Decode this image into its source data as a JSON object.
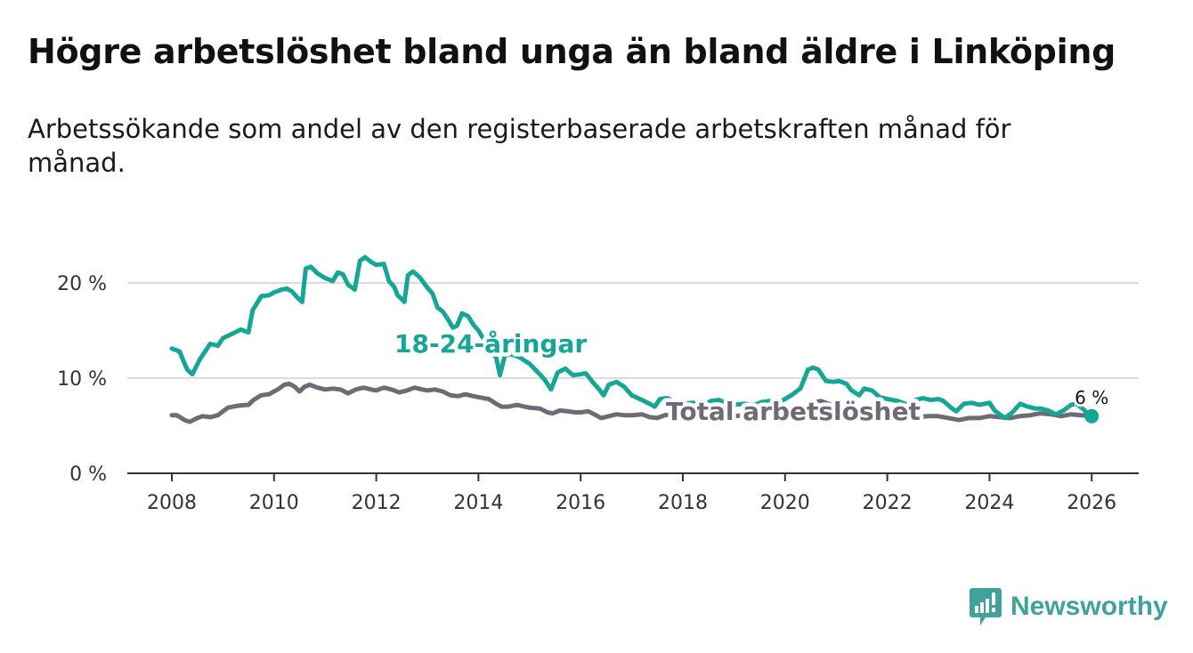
{
  "title": "Högre arbetslöshet bland unga än bland äldre i Linköping",
  "subtitle": "Arbetssökande som andel av den registerbaserade arbetskraften månad för månad.",
  "brand": {
    "name": "Newsworthy",
    "color": "#3fa39b",
    "icon": "newsworthy-logo-icon"
  },
  "chart_data": {
    "type": "line",
    "title": "Högre arbetslöshet bland unga än bland äldre i Linköping",
    "xlabel": "",
    "ylabel": "",
    "xlim": [
      2007.0,
      2026.85
    ],
    "ylim": [
      0,
      22
    ],
    "x_ticks": [
      2008,
      2010,
      2012,
      2014,
      2016,
      2018,
      2020,
      2022,
      2024,
      2026
    ],
    "x_tick_labels": [
      "2008",
      "2010",
      "2012",
      "2014",
      "2016",
      "2018",
      "2020",
      "2022",
      "2024",
      "2026"
    ],
    "y_ticks": [
      0,
      10,
      20
    ],
    "y_tick_labels": [
      "0 %",
      "10 %",
      "20 %"
    ],
    "grid": "horizontal",
    "end_label": "6 %",
    "series": [
      {
        "name": "18-24-åringar",
        "label": "18-24-åringar",
        "color": "#16a695",
        "points": [
          [
            2008.0,
            13.1
          ],
          [
            2008.15,
            12.8
          ],
          [
            2008.3,
            10.9
          ],
          [
            2008.4,
            10.4
          ],
          [
            2008.55,
            12.0
          ],
          [
            2008.75,
            13.6
          ],
          [
            2008.9,
            13.4
          ],
          [
            2009.0,
            14.2
          ],
          [
            2009.2,
            14.7
          ],
          [
            2009.35,
            15.1
          ],
          [
            2009.5,
            14.8
          ],
          [
            2009.58,
            17.1
          ],
          [
            2009.75,
            18.6
          ],
          [
            2009.9,
            18.7
          ],
          [
            2010.0,
            19.0
          ],
          [
            2010.15,
            19.3
          ],
          [
            2010.25,
            19.4
          ],
          [
            2010.35,
            19.1
          ],
          [
            2010.45,
            18.5
          ],
          [
            2010.55,
            18.0
          ],
          [
            2010.62,
            21.5
          ],
          [
            2010.72,
            21.7
          ],
          [
            2010.85,
            21.0
          ],
          [
            2011.0,
            20.5
          ],
          [
            2011.15,
            20.2
          ],
          [
            2011.25,
            21.1
          ],
          [
            2011.35,
            20.9
          ],
          [
            2011.45,
            19.8
          ],
          [
            2011.58,
            19.3
          ],
          [
            2011.68,
            22.3
          ],
          [
            2011.78,
            22.7
          ],
          [
            2011.9,
            22.2
          ],
          [
            2012.0,
            21.9
          ],
          [
            2012.15,
            22.0
          ],
          [
            2012.25,
            20.2
          ],
          [
            2012.35,
            19.6
          ],
          [
            2012.42,
            18.7
          ],
          [
            2012.55,
            18.0
          ],
          [
            2012.62,
            20.8
          ],
          [
            2012.72,
            21.2
          ],
          [
            2012.85,
            20.6
          ],
          [
            2013.0,
            19.5
          ],
          [
            2013.1,
            18.9
          ],
          [
            2013.2,
            17.4
          ],
          [
            2013.3,
            17.0
          ],
          [
            2013.4,
            16.2
          ],
          [
            2013.5,
            15.3
          ],
          [
            2013.58,
            15.5
          ],
          [
            2013.68,
            16.8
          ],
          [
            2013.8,
            16.5
          ],
          [
            2013.9,
            15.6
          ],
          [
            2014.0,
            15.0
          ],
          [
            2014.2,
            13.2
          ],
          [
            2014.35,
            12.1
          ],
          [
            2014.42,
            10.3
          ],
          [
            2014.52,
            12.4
          ],
          [
            2014.65,
            12.5
          ],
          [
            2014.8,
            12.2
          ],
          [
            2015.0,
            11.5
          ],
          [
            2015.2,
            10.4
          ],
          [
            2015.3,
            9.8
          ],
          [
            2015.42,
            8.8
          ],
          [
            2015.55,
            10.6
          ],
          [
            2015.7,
            11.0
          ],
          [
            2015.85,
            10.3
          ],
          [
            2016.0,
            10.4
          ],
          [
            2016.1,
            10.5
          ],
          [
            2016.25,
            9.5
          ],
          [
            2016.35,
            8.9
          ],
          [
            2016.45,
            8.2
          ],
          [
            2016.55,
            9.3
          ],
          [
            2016.7,
            9.6
          ],
          [
            2016.85,
            9.1
          ],
          [
            2017.0,
            8.2
          ],
          [
            2017.2,
            7.7
          ],
          [
            2017.35,
            7.3
          ],
          [
            2017.45,
            7.0
          ],
          [
            2017.55,
            7.8
          ],
          [
            2017.7,
            7.9
          ],
          [
            2017.85,
            7.5
          ],
          [
            2018.0,
            7.3
          ],
          [
            2018.2,
            7.4
          ],
          [
            2018.4,
            7.2
          ],
          [
            2018.55,
            7.6
          ],
          [
            2018.7,
            7.7
          ],
          [
            2018.85,
            7.4
          ],
          [
            2019.0,
            7.2
          ],
          [
            2019.2,
            7.3
          ],
          [
            2019.4,
            7.2
          ],
          [
            2019.55,
            7.5
          ],
          [
            2019.7,
            7.6
          ],
          [
            2019.85,
            7.4
          ],
          [
            2020.0,
            7.8
          ],
          [
            2020.15,
            8.3
          ],
          [
            2020.3,
            8.9
          ],
          [
            2020.45,
            10.9
          ],
          [
            2020.55,
            11.1
          ],
          [
            2020.65,
            10.9
          ],
          [
            2020.8,
            9.7
          ],
          [
            2020.95,
            9.6
          ],
          [
            2021.05,
            9.7
          ],
          [
            2021.2,
            9.4
          ],
          [
            2021.3,
            8.7
          ],
          [
            2021.45,
            8.2
          ],
          [
            2021.55,
            8.9
          ],
          [
            2021.7,
            8.7
          ],
          [
            2021.85,
            8.0
          ],
          [
            2022.0,
            7.8
          ],
          [
            2022.2,
            7.6
          ],
          [
            2022.3,
            7.4
          ],
          [
            2022.45,
            7.1
          ],
          [
            2022.55,
            7.7
          ],
          [
            2022.7,
            7.9
          ],
          [
            2022.85,
            7.7
          ],
          [
            2023.0,
            7.8
          ],
          [
            2023.1,
            7.6
          ],
          [
            2023.25,
            6.9
          ],
          [
            2023.35,
            6.5
          ],
          [
            2023.5,
            7.3
          ],
          [
            2023.65,
            7.4
          ],
          [
            2023.8,
            7.2
          ],
          [
            2024.0,
            7.4
          ],
          [
            2024.1,
            6.6
          ],
          [
            2024.2,
            6.2
          ],
          [
            2024.3,
            5.8
          ],
          [
            2024.45,
            6.4
          ],
          [
            2024.6,
            7.3
          ],
          [
            2024.75,
            7.0
          ],
          [
            2024.9,
            6.8
          ],
          [
            2025.0,
            6.8
          ],
          [
            2025.15,
            6.6
          ],
          [
            2025.3,
            6.2
          ],
          [
            2025.45,
            6.6
          ],
          [
            2025.6,
            7.2
          ],
          [
            2025.7,
            7.3
          ],
          [
            2025.8,
            6.9
          ],
          [
            2025.9,
            6.4
          ],
          [
            2026.0,
            6.0
          ]
        ]
      },
      {
        "name": "Total arbetslöshet",
        "label": "Total arbetslöshet",
        "color": "#6e6b77",
        "points": [
          [
            2008.0,
            6.1
          ],
          [
            2008.1,
            6.1
          ],
          [
            2008.25,
            5.6
          ],
          [
            2008.35,
            5.4
          ],
          [
            2008.5,
            5.8
          ],
          [
            2008.6,
            6.0
          ],
          [
            2008.75,
            5.9
          ],
          [
            2008.9,
            6.1
          ],
          [
            2009.0,
            6.5
          ],
          [
            2009.1,
            6.9
          ],
          [
            2009.3,
            7.1
          ],
          [
            2009.5,
            7.2
          ],
          [
            2009.6,
            7.7
          ],
          [
            2009.75,
            8.2
          ],
          [
            2009.9,
            8.3
          ],
          [
            2010.0,
            8.6
          ],
          [
            2010.1,
            8.9
          ],
          [
            2010.2,
            9.3
          ],
          [
            2010.3,
            9.4
          ],
          [
            2010.4,
            9.1
          ],
          [
            2010.5,
            8.6
          ],
          [
            2010.6,
            9.1
          ],
          [
            2010.7,
            9.3
          ],
          [
            2010.85,
            9.0
          ],
          [
            2011.0,
            8.8
          ],
          [
            2011.15,
            8.9
          ],
          [
            2011.3,
            8.8
          ],
          [
            2011.45,
            8.4
          ],
          [
            2011.6,
            8.8
          ],
          [
            2011.75,
            9.0
          ],
          [
            2011.9,
            8.8
          ],
          [
            2012.0,
            8.7
          ],
          [
            2012.15,
            9.0
          ],
          [
            2012.3,
            8.8
          ],
          [
            2012.45,
            8.5
          ],
          [
            2012.6,
            8.7
          ],
          [
            2012.75,
            9.0
          ],
          [
            2012.9,
            8.8
          ],
          [
            2013.0,
            8.7
          ],
          [
            2013.15,
            8.8
          ],
          [
            2013.3,
            8.6
          ],
          [
            2013.45,
            8.2
          ],
          [
            2013.6,
            8.1
          ],
          [
            2013.75,
            8.3
          ],
          [
            2013.9,
            8.1
          ],
          [
            2014.0,
            8.0
          ],
          [
            2014.2,
            7.8
          ],
          [
            2014.35,
            7.3
          ],
          [
            2014.45,
            7.0
          ],
          [
            2014.6,
            7.0
          ],
          [
            2014.75,
            7.2
          ],
          [
            2014.9,
            7.0
          ],
          [
            2015.0,
            6.9
          ],
          [
            2015.2,
            6.8
          ],
          [
            2015.35,
            6.4
          ],
          [
            2015.45,
            6.3
          ],
          [
            2015.6,
            6.6
          ],
          [
            2015.75,
            6.5
          ],
          [
            2015.9,
            6.4
          ],
          [
            2016.0,
            6.4
          ],
          [
            2016.15,
            6.5
          ],
          [
            2016.3,
            6.1
          ],
          [
            2016.4,
            5.8
          ],
          [
            2016.55,
            6.0
          ],
          [
            2016.7,
            6.2
          ],
          [
            2016.85,
            6.1
          ],
          [
            2017.0,
            6.1
          ],
          [
            2017.2,
            6.2
          ],
          [
            2017.35,
            5.9
          ],
          [
            2017.5,
            5.8
          ],
          [
            2017.65,
            6.1
          ],
          [
            2017.8,
            6.2
          ],
          [
            2018.0,
            6.0
          ],
          [
            2018.2,
            6.1
          ],
          [
            2018.4,
            5.8
          ],
          [
            2018.6,
            6.0
          ],
          [
            2018.8,
            6.1
          ],
          [
            2019.0,
            6.0
          ],
          [
            2019.2,
            6.1
          ],
          [
            2019.4,
            5.9
          ],
          [
            2019.6,
            6.2
          ],
          [
            2019.8,
            6.3
          ],
          [
            2020.0,
            6.5
          ],
          [
            2020.2,
            6.8
          ],
          [
            2020.4,
            7.0
          ],
          [
            2020.55,
            7.4
          ],
          [
            2020.7,
            7.6
          ],
          [
            2020.85,
            7.3
          ],
          [
            2021.0,
            7.1
          ],
          [
            2021.2,
            7.0
          ],
          [
            2021.4,
            6.6
          ],
          [
            2021.55,
            6.7
          ],
          [
            2021.7,
            6.6
          ],
          [
            2021.85,
            6.3
          ],
          [
            2022.0,
            6.1
          ],
          [
            2022.2,
            6.0
          ],
          [
            2022.4,
            5.8
          ],
          [
            2022.6,
            5.9
          ],
          [
            2022.8,
            6.0
          ],
          [
            2023.0,
            6.0
          ],
          [
            2023.2,
            5.8
          ],
          [
            2023.4,
            5.6
          ],
          [
            2023.6,
            5.8
          ],
          [
            2023.8,
            5.8
          ],
          [
            2024.0,
            6.0
          ],
          [
            2024.2,
            5.9
          ],
          [
            2024.4,
            5.8
          ],
          [
            2024.6,
            6.0
          ],
          [
            2024.8,
            6.1
          ],
          [
            2025.0,
            6.3
          ],
          [
            2025.2,
            6.2
          ],
          [
            2025.4,
            6.0
          ],
          [
            2025.6,
            6.2
          ],
          [
            2025.8,
            6.1
          ],
          [
            2026.0,
            6.0
          ]
        ]
      }
    ]
  }
}
